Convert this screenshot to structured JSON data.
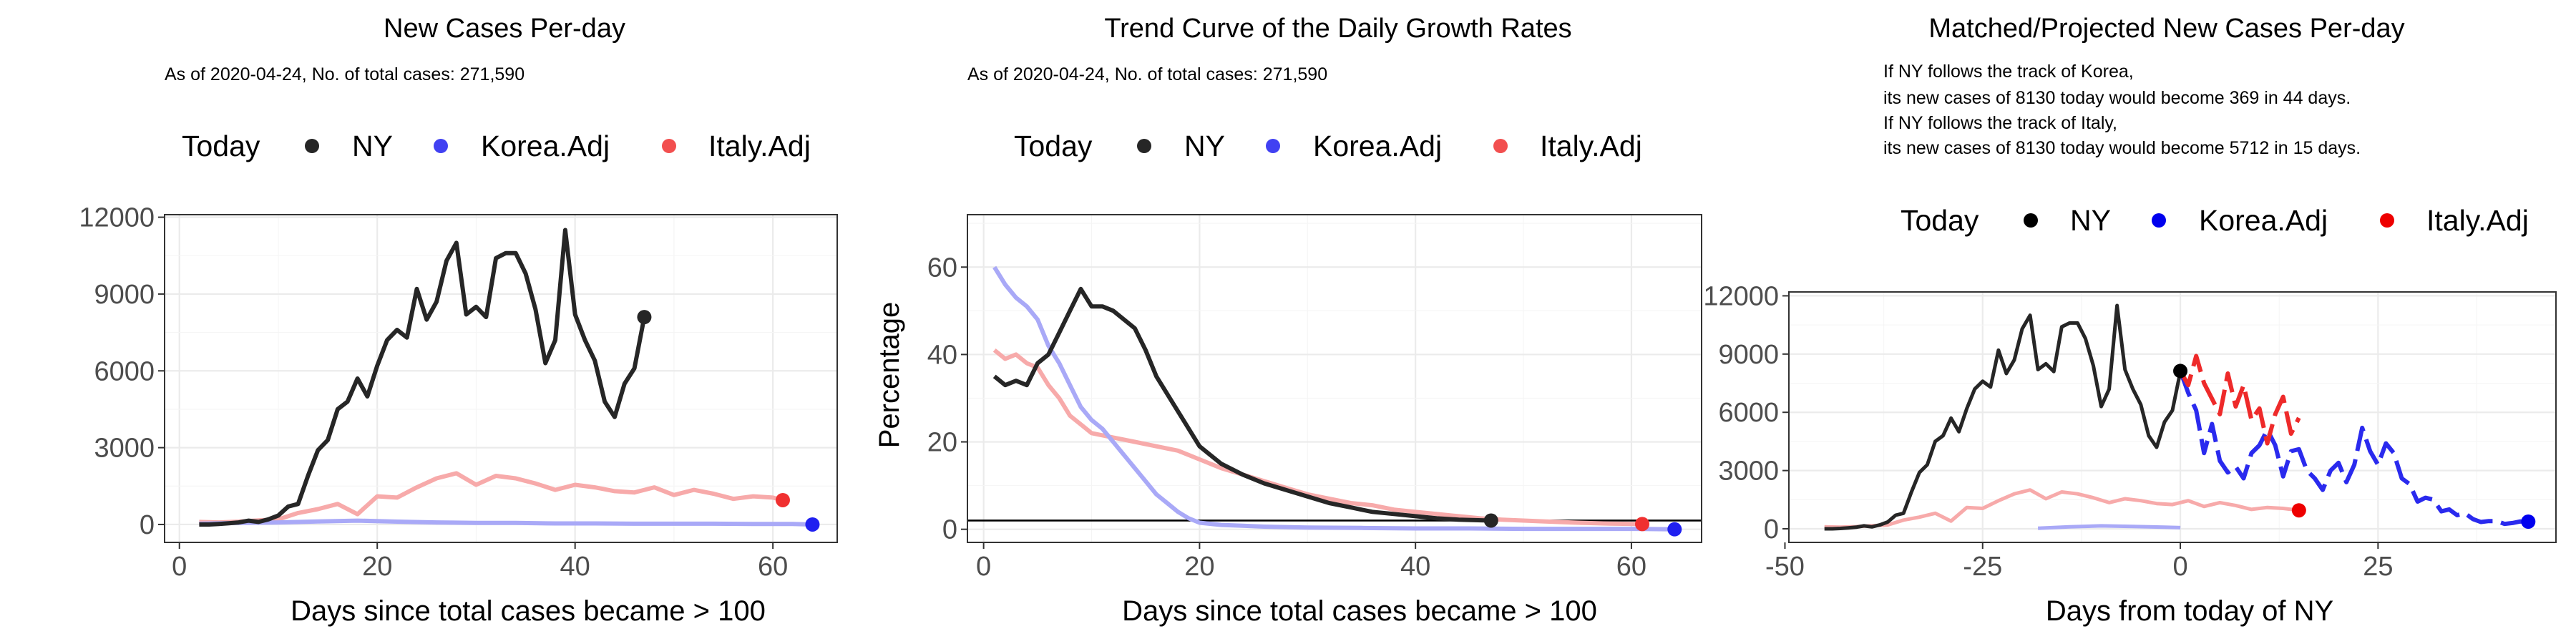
{
  "colors": {
    "ny": "#262626",
    "korea": "#2020f0",
    "italy": "#f03030",
    "korea_faded": "#a9a9f7",
    "italy_faded": "#f7aaaa"
  },
  "chart_data": [
    {
      "type": "line",
      "title": "New Cases Per-day",
      "subtitle": "As of 2020-04-24, No. of total cases: 271,590",
      "xlabel": "Days since total cases became > 100",
      "ylabel": "",
      "xlim": [
        -1.5,
        66.5
      ],
      "ylim": [
        -700,
        12100
      ],
      "x_ticks": [
        0,
        20,
        40,
        60
      ],
      "y_ticks": [
        0,
        3000,
        6000,
        9000,
        12000
      ],
      "grid": true,
      "legend": {
        "title": "Today",
        "position": "top",
        "entries": [
          "NY",
          "Korea.Adj",
          "Italy.Adj"
        ]
      },
      "series": [
        {
          "name": "NY",
          "x": [
            2,
            3,
            4,
            5,
            6,
            7,
            8,
            9,
            10,
            11,
            12,
            13,
            14,
            15,
            16,
            17,
            18,
            19,
            20,
            21,
            22,
            23,
            24,
            25,
            26,
            27,
            28,
            29,
            30,
            31,
            32,
            33,
            34,
            35,
            36,
            37,
            38,
            39,
            40,
            41,
            42,
            43,
            44,
            45,
            46,
            47
          ],
          "values": [
            0,
            0,
            20,
            50,
            80,
            150,
            100,
            200,
            350,
            700,
            800,
            1900,
            2900,
            3300,
            4500,
            4800,
            5700,
            5000,
            6200,
            7200,
            7600,
            7300,
            9200,
            8000,
            8700,
            10300,
            11000,
            8200,
            8500,
            8100,
            10400,
            10600,
            10600,
            9800,
            8400,
            6300,
            7200,
            11500,
            8200,
            7200,
            6400,
            4800,
            4200,
            5500,
            6100,
            8100
          ]
        },
        {
          "name": "Korea.Adj",
          "x": [
            2,
            6,
            10,
            14,
            18,
            22,
            26,
            30,
            34,
            38,
            42,
            46,
            50,
            54,
            58,
            62,
            64
          ],
          "values": [
            30,
            60,
            80,
            120,
            150,
            110,
            80,
            60,
            60,
            40,
            40,
            30,
            30,
            30,
            20,
            20,
            0
          ]
        },
        {
          "name": "Italy.Adj",
          "x": [
            2,
            4,
            6,
            8,
            10,
            12,
            14,
            16,
            18,
            20,
            22,
            24,
            26,
            28,
            30,
            32,
            34,
            36,
            38,
            40,
            42,
            44,
            46,
            48,
            50,
            52,
            54,
            56,
            58,
            60,
            61
          ],
          "values": [
            100,
            80,
            110,
            160,
            200,
            450,
            600,
            800,
            400,
            1100,
            1050,
            1450,
            1800,
            2000,
            1550,
            1900,
            1800,
            1600,
            1350,
            1550,
            1450,
            1300,
            1250,
            1450,
            1150,
            1350,
            1200,
            1000,
            1100,
            1050,
            950
          ]
        }
      ],
      "today_markers": [
        {
          "series": "NY",
          "x": 47,
          "y": 8100
        },
        {
          "series": "Korea.Adj",
          "x": 64,
          "y": 0
        },
        {
          "series": "Italy.Adj",
          "x": 61,
          "y": 950
        }
      ]
    },
    {
      "type": "line",
      "title": "Trend Curve of the Daily Growth Rates",
      "subtitle": "As of 2020-04-24, No. of total cases: 271,590",
      "xlabel": "Days since total cases became > 100",
      "ylabel": "Percentage",
      "xlim": [
        -1.5,
        66.5
      ],
      "ylim": [
        -3,
        72
      ],
      "x_ticks": [
        0,
        20,
        40,
        60
      ],
      "y_ticks": [
        0,
        20,
        40,
        60
      ],
      "reference_line_y": 2,
      "grid": true,
      "legend": {
        "title": "Today",
        "position": "top",
        "entries": [
          "NY",
          "Korea.Adj",
          "Italy.Adj"
        ]
      },
      "series": [
        {
          "name": "NY",
          "x": [
            1,
            2,
            3,
            4,
            5,
            6,
            7,
            8,
            9,
            10,
            11,
            12,
            13,
            14,
            15,
            16,
            18,
            20,
            22,
            24,
            26,
            28,
            30,
            32,
            34,
            36,
            38,
            40,
            42,
            44,
            47
          ],
          "values": [
            35,
            33,
            34,
            33,
            38,
            40,
            45,
            50,
            55,
            51,
            51,
            50,
            48,
            46,
            41,
            35,
            27,
            19,
            15,
            12.5,
            10.5,
            9,
            7.5,
            6,
            5,
            4,
            3.5,
            3,
            2.5,
            2.2,
            2
          ]
        },
        {
          "name": "Korea.Adj",
          "x": [
            1,
            2,
            3,
            4,
            5,
            6,
            7,
            8,
            9,
            10,
            11,
            12,
            13,
            14,
            15,
            16,
            17,
            18,
            19,
            20,
            22,
            24,
            26,
            30,
            35,
            40,
            45,
            50,
            55,
            60,
            64
          ],
          "values": [
            60,
            56,
            53,
            51,
            48,
            42,
            38,
            33,
            28,
            25,
            23,
            20,
            17,
            14,
            11,
            8,
            6,
            4,
            2.5,
            1.5,
            1,
            0.8,
            0.6,
            0.4,
            0.3,
            0.2,
            0.2,
            0.1,
            0.1,
            0.1,
            0
          ]
        },
        {
          "name": "Italy.Adj",
          "x": [
            1,
            2,
            3,
            4,
            5,
            6,
            7,
            8,
            9,
            10,
            12,
            14,
            16,
            18,
            20,
            22,
            24,
            26,
            28,
            30,
            32,
            34,
            36,
            38,
            40,
            42,
            44,
            46,
            48,
            50,
            52,
            55,
            58,
            61
          ],
          "values": [
            41,
            39,
            40,
            38,
            37,
            33,
            30,
            26,
            24,
            22,
            21,
            20,
            19,
            18,
            16,
            14,
            12.5,
            11,
            9.5,
            8,
            7,
            6,
            5.5,
            4.5,
            4,
            3.5,
            3,
            2.5,
            2.2,
            2,
            1.8,
            1.5,
            1.3,
            1.2
          ]
        }
      ],
      "today_markers": [
        {
          "series": "NY",
          "x": 47,
          "y": 2
        },
        {
          "series": "Korea.Adj",
          "x": 64,
          "y": 0
        },
        {
          "series": "Italy.Adj",
          "x": 61,
          "y": 1.2
        }
      ]
    },
    {
      "type": "line",
      "title": "Matched/Projected New Cases Per-day",
      "annotations": [
        "If NY follows the track of Korea,",
        "its new cases of 8130 today would become 369 in 44 days.",
        "If NY follows the track of Italy,",
        "its new cases of 8130 today would become 5712 in 15 days."
      ],
      "xlabel": "Days from today of NY",
      "ylabel": "",
      "xlim": [
        -49.5,
        47.5
      ],
      "ylim": [
        -700,
        12200
      ],
      "x_ticks": [
        -50,
        -25,
        0,
        25
      ],
      "y_ticks": [
        0,
        3000,
        6000,
        9000,
        12000
      ],
      "grid": true,
      "legend": {
        "title": "Today",
        "position": "top",
        "entries": [
          "NY",
          "Korea.Adj",
          "Italy.Adj"
        ]
      },
      "series": [
        {
          "name": "NY",
          "x": [
            -45,
            -44,
            -43,
            -42,
            -41,
            -40,
            -39,
            -38,
            -37,
            -36,
            -35,
            -34,
            -33,
            -32,
            -31,
            -30,
            -29,
            -28,
            -27,
            -26,
            -25,
            -24,
            -23,
            -22,
            -21,
            -20,
            -19,
            -18,
            -17,
            -16,
            -15,
            -14,
            -13,
            -12,
            -11,
            -10,
            -9,
            -8,
            -7,
            -6,
            -5,
            -4,
            -3,
            -2,
            -1,
            0
          ],
          "values": [
            0,
            0,
            20,
            50,
            80,
            150,
            100,
            200,
            350,
            700,
            800,
            1900,
            2900,
            3300,
            4500,
            4800,
            5700,
            5000,
            6200,
            7200,
            7600,
            7300,
            9200,
            8000,
            8700,
            10300,
            11000,
            8200,
            8500,
            8100,
            10400,
            10600,
            10600,
            9800,
            8400,
            6300,
            7200,
            11500,
            8200,
            7200,
            6400,
            4800,
            4200,
            5500,
            6100,
            8100
          ]
        },
        {
          "name": "Korea.Adj",
          "x": [
            -18,
            -14,
            -10,
            -6,
            -2,
            0
          ],
          "values": [
            30,
            100,
            150,
            120,
            80,
            60
          ]
        },
        {
          "name": "Italy.Adj",
          "x": [
            -45,
            -43,
            -41,
            -39,
            -37,
            -35,
            -33,
            -31,
            -29,
            -27,
            -25,
            -23,
            -21,
            -19,
            -17,
            -15,
            -13,
            -11,
            -9,
            -7,
            -5,
            -3,
            -1,
            1,
            3,
            5,
            7,
            9,
            11,
            13,
            15
          ],
          "values": [
            100,
            80,
            110,
            160,
            200,
            450,
            600,
            800,
            400,
            1100,
            1050,
            1450,
            1800,
            2000,
            1550,
            1900,
            1800,
            1600,
            1350,
            1550,
            1450,
            1300,
            1250,
            1450,
            1150,
            1350,
            1200,
            1000,
            1100,
            1050,
            950
          ]
        },
        {
          "name": "Korea.Adj projected",
          "x": [
            0,
            1,
            2,
            3,
            4,
            5,
            6,
            7,
            8,
            9,
            10,
            11,
            12,
            13,
            14,
            15,
            16,
            17,
            18,
            19,
            20,
            21,
            22,
            23,
            24,
            25,
            26,
            27,
            28,
            29,
            30,
            31,
            32,
            33,
            34,
            35,
            36,
            37,
            38,
            39,
            40,
            41,
            42,
            43,
            44
          ],
          "values": [
            8130,
            7000,
            6100,
            3900,
            5400,
            3500,
            2900,
            3200,
            2600,
            3900,
            4300,
            5100,
            4300,
            2700,
            4000,
            4100,
            3000,
            2600,
            2000,
            3000,
            3400,
            2400,
            3300,
            5200,
            4000,
            3300,
            4400,
            3900,
            2600,
            2300,
            1400,
            1600,
            1500,
            900,
            1000,
            700,
            800,
            500,
            350,
            400,
            400,
            250,
            300,
            380,
            369
          ]
        },
        {
          "name": "Italy.Adj projected",
          "x": [
            0,
            1,
            2,
            3,
            4,
            5,
            6,
            7,
            8,
            9,
            10,
            11,
            12,
            13,
            14,
            15
          ],
          "values": [
            8130,
            7400,
            8900,
            7500,
            6700,
            5900,
            8000,
            6300,
            7400,
            5600,
            6200,
            4400,
            5900,
            6800,
            4900,
            5712
          ]
        }
      ],
      "today_markers": [
        {
          "series": "NY",
          "x": 0,
          "y": 8130
        },
        {
          "series": "Korea.Adj",
          "x": 44,
          "y": 369
        },
        {
          "series": "Italy.Adj",
          "x": 15,
          "y": 950
        }
      ]
    }
  ]
}
